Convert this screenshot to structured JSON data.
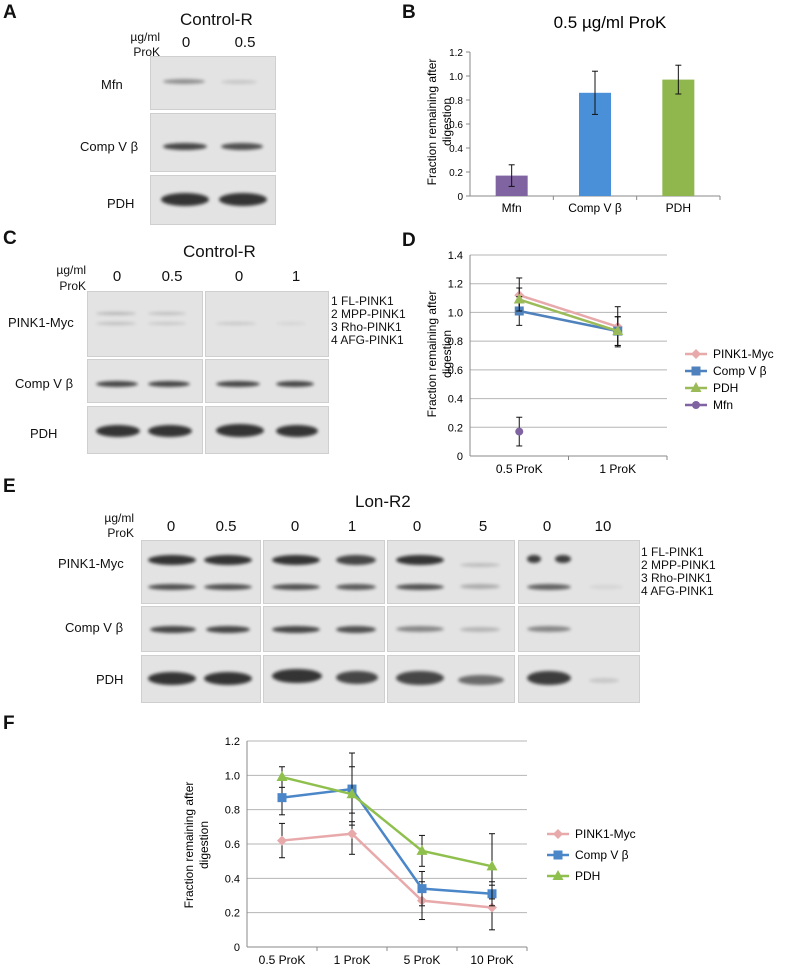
{
  "panelA": {
    "label": "A",
    "title": "Control-R",
    "unit_line1": "µg/ml",
    "unit_line2": "ProK",
    "lanes": [
      "0",
      "0.5"
    ],
    "rows": [
      "Mfn",
      "Comp V β",
      "PDH"
    ]
  },
  "panelB": {
    "label": "B",
    "chart_data": {
      "type": "bar",
      "title": "0.5 µg/ml ProK",
      "ylabel": "Fraction remaining after digestion",
      "ylabel_line1": "Fraction remaining after",
      "ylabel_line2": "digestion",
      "categories": [
        "Mfn",
        "Comp V β",
        "PDH"
      ],
      "values": [
        0.17,
        0.86,
        0.97
      ],
      "errors": [
        0.09,
        0.18,
        0.12
      ],
      "colors": [
        "#8064a2",
        "#4a90d9",
        "#8fb74d"
      ],
      "ylim": [
        0,
        1.2
      ],
      "yticks": [
        "0",
        "0.2",
        "0.4",
        "0.6",
        "0.8",
        "1.0",
        "1.2"
      ]
    }
  },
  "panelC": {
    "label": "C",
    "title": "Control-R",
    "unit_line1": "µg/ml",
    "unit_line2": "ProK",
    "lanes": [
      "0",
      "0.5",
      "0",
      "1"
    ],
    "rows": [
      "PINK1-Myc",
      "Comp V β",
      "PDH"
    ],
    "annotations": [
      "1 FL-PINK1",
      "2 MPP-PINK1",
      "3 Rho-PINK1",
      "4 AFG-PINK1"
    ]
  },
  "panelD": {
    "label": "D",
    "chart_data": {
      "type": "line",
      "ylabel_line1": "Fraction remaining after",
      "ylabel_line2": "digestion",
      "categories": [
        "0.5 ProK",
        "1 ProK"
      ],
      "ylim": [
        0,
        1.4
      ],
      "yticks": [
        "0",
        "0.2",
        "0.4",
        "0.6",
        "0.8",
        "1.0",
        "1.2",
        "1.4"
      ],
      "series": [
        {
          "name": "PINK1-Myc",
          "values": [
            1.12,
            0.9
          ],
          "errors": [
            0.12,
            0.14
          ],
          "color": "#e8a9ab",
          "marker": "diamond"
        },
        {
          "name": "Comp V β",
          "values": [
            1.01,
            0.87
          ],
          "errors": [
            0.1,
            0.1
          ],
          "color": "#4f81bd",
          "marker": "square"
        },
        {
          "name": "PDH",
          "values": [
            1.09,
            0.87
          ],
          "errors": [
            0.08,
            0.1
          ],
          "color": "#9bbb59",
          "marker": "triangle"
        },
        {
          "name": "Mfn",
          "values": [
            0.17,
            null
          ],
          "errors": [
            0.1,
            null
          ],
          "color": "#8064a2",
          "marker": "circle"
        }
      ]
    }
  },
  "panelE": {
    "label": "E",
    "title": "Lon-R2",
    "unit_line1": "µg/ml",
    "unit_line2": "ProK",
    "lanes": [
      "0",
      "0.5",
      "0",
      "1",
      "0",
      "5",
      "0",
      "10"
    ],
    "rows": [
      "PINK1-Myc",
      "Comp V β",
      "PDH"
    ],
    "annotations": [
      "1 FL-PINK1",
      "2 MPP-PINK1",
      "3 Rho-PINK1",
      "4 AFG-PINK1"
    ]
  },
  "panelF": {
    "label": "F",
    "chart_data": {
      "type": "line",
      "ylabel_line1": "Fraction remaining after",
      "ylabel_line2": "digestion",
      "categories": [
        "0.5 ProK",
        "1 ProK",
        "5 ProK",
        "10 ProK"
      ],
      "ylim": [
        0,
        1.2
      ],
      "yticks": [
        "0",
        "0.2",
        "0.4",
        "0.6",
        "0.8",
        "1.0",
        "1.2"
      ],
      "series": [
        {
          "name": "PINK1-Myc",
          "values": [
            0.62,
            0.66,
            0.27,
            0.23
          ],
          "errors": [
            0.1,
            0.12,
            0.11,
            0.13
          ],
          "color": "#e8a9ab",
          "marker": "diamond"
        },
        {
          "name": "Comp V β",
          "values": [
            0.87,
            0.92,
            0.34,
            0.31
          ],
          "errors": [
            0.1,
            0.21,
            0.1,
            0.07
          ],
          "color": "#4a86c8",
          "marker": "square"
        },
        {
          "name": "PDH",
          "values": [
            0.99,
            0.89,
            0.56,
            0.47
          ],
          "errors": [
            0.06,
            0.16,
            0.09,
            0.19
          ],
          "color": "#8fc04d",
          "marker": "triangle"
        }
      ]
    }
  }
}
